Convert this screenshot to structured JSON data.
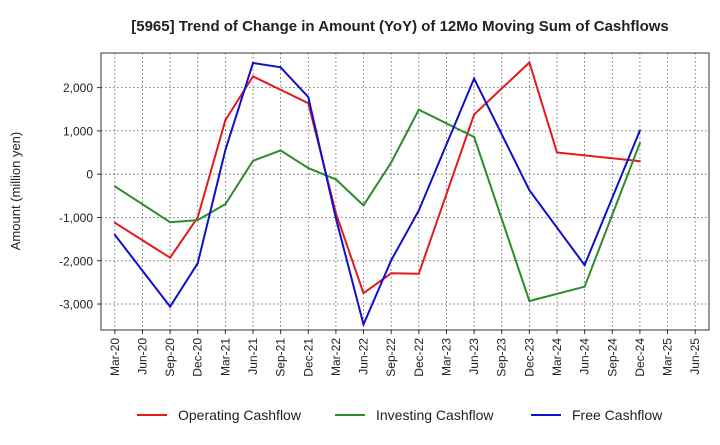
{
  "chart_data": {
    "type": "line",
    "title": "[5965]  Trend of Change in Amount (YoY) of 12Mo Moving Sum of Cashflows",
    "xlabel": "",
    "ylabel": "Amount (million yen)",
    "categories": [
      "Mar-20",
      "Jun-20",
      "Sep-20",
      "Dec-20",
      "Mar-21",
      "Jun-21",
      "Sep-21",
      "Dec-21",
      "Mar-22",
      "Jun-22",
      "Sep-22",
      "Dec-22",
      "Mar-23",
      "Jun-23",
      "Sep-23",
      "Dec-23",
      "Mar-24",
      "Jun-24",
      "Sep-24",
      "Dec-24",
      "Mar-25",
      "Jun-25"
    ],
    "ylim": [
      -3600,
      2800
    ],
    "yticks": [
      2000,
      1000,
      0,
      -1000,
      -2000,
      -3000
    ],
    "ytick_labels": [
      "2,000",
      "1,000",
      "0",
      "-1,000",
      "-2,000",
      "-3,000"
    ],
    "grid": true,
    "legend_position": "bottom",
    "series": [
      {
        "name": "Operating Cashflow",
        "color": "#e31a1c",
        "values": [
          -1120,
          null,
          -1930,
          -1000,
          1250,
          2260,
          null,
          1640,
          -900,
          -2750,
          -2290,
          -2300,
          null,
          1380,
          null,
          2580,
          500,
          null,
          null,
          300,
          null,
          null
        ]
      },
      {
        "name": "Investing Cashflow",
        "color": "#2e8b2e",
        "values": [
          -280,
          null,
          -1110,
          -1060,
          -690,
          310,
          550,
          140,
          -120,
          -720,
          270,
          1490,
          null,
          860,
          null,
          -2930,
          null,
          -2600,
          null,
          720,
          null,
          null
        ]
      },
      {
        "name": "Free Cashflow",
        "color": "#1010cc",
        "values": [
          -1400,
          null,
          -3060,
          -2060,
          560,
          2570,
          2470,
          1780,
          -1020,
          -3470,
          -1990,
          -840,
          null,
          2210,
          null,
          -370,
          null,
          -2100,
          null,
          1010,
          null,
          null
        ]
      }
    ]
  }
}
